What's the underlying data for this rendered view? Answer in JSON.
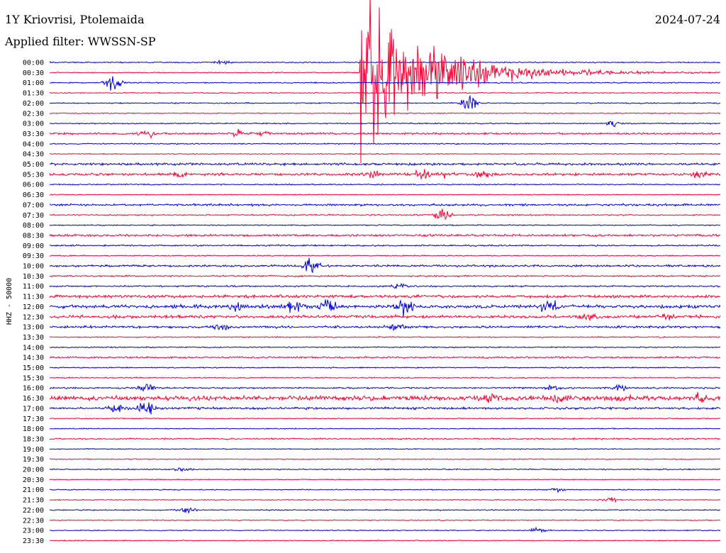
{
  "header": {
    "station": "1Y Kriovrisi, Ptolemaida",
    "filter": "Applied filter: WWSSN-SP",
    "date": "2024-07-24"
  },
  "colors": {
    "even_trace": "#0000dd",
    "odd_trace": "#ff0033"
  },
  "chart_data": {
    "type": "line",
    "title": "",
    "ylabel": "HHZ - 50000",
    "row_labels": [
      "00:00",
      "00:30",
      "01:00",
      "01:30",
      "02:00",
      "02:30",
      "03:00",
      "03:30",
      "04:00",
      "04:30",
      "05:00",
      "05:30",
      "06:00",
      "06:30",
      "07:00",
      "07:30",
      "08:00",
      "08:30",
      "09:00",
      "09:30",
      "10:00",
      "10:30",
      "11:00",
      "11:30",
      "12:00",
      "12:30",
      "13:00",
      "13:30",
      "14:00",
      "14:30",
      "15:00",
      "15:30",
      "16:00",
      "16:30",
      "17:00",
      "17:30",
      "18:00",
      "18:30",
      "19:00",
      "19:30",
      "20:00",
      "20:30",
      "21:00",
      "21:30",
      "22:00",
      "22:30",
      "23:00",
      "23:30"
    ],
    "row_noise": [
      0.6,
      0.5,
      0.6,
      0.5,
      0.6,
      0.5,
      0.6,
      1.0,
      0.6,
      0.5,
      1.2,
      1.3,
      0.6,
      0.5,
      1.1,
      0.7,
      0.6,
      1.1,
      0.8,
      0.6,
      1.1,
      0.8,
      0.8,
      1.5,
      1.8,
      1.6,
      1.2,
      0.6,
      0.6,
      0.9,
      0.6,
      0.6,
      0.8,
      2.4,
      1.2,
      0.5,
      0.5,
      0.8,
      0.5,
      0.5,
      0.6,
      0.5,
      0.5,
      0.5,
      0.6,
      0.5,
      0.5,
      0.5
    ],
    "events": [
      {
        "row": 0,
        "t": 0.257,
        "amp": 2
      },
      {
        "row": 1,
        "t": 0.462,
        "amp": 95,
        "decay": 0.09
      },
      {
        "row": 2,
        "t": 0.095,
        "amp": 9
      },
      {
        "row": 4,
        "t": 0.625,
        "amp": 10
      },
      {
        "row": 6,
        "t": 0.84,
        "amp": 3
      },
      {
        "row": 7,
        "t": 0.145,
        "amp": 4
      },
      {
        "row": 7,
        "t": 0.28,
        "amp": 4
      },
      {
        "row": 7,
        "t": 0.315,
        "amp": 3
      },
      {
        "row": 11,
        "t": 0.195,
        "amp": 3
      },
      {
        "row": 11,
        "t": 0.48,
        "amp": 4
      },
      {
        "row": 11,
        "t": 0.555,
        "amp": 5
      },
      {
        "row": 11,
        "t": 0.59,
        "amp": 3
      },
      {
        "row": 11,
        "t": 0.645,
        "amp": 4
      },
      {
        "row": 11,
        "t": 0.97,
        "amp": 4
      },
      {
        "row": 15,
        "t": 0.585,
        "amp": 8
      },
      {
        "row": 20,
        "t": 0.39,
        "amp": 8
      },
      {
        "row": 22,
        "t": 0.52,
        "amp": 4
      },
      {
        "row": 24,
        "t": 0.28,
        "amp": 6
      },
      {
        "row": 24,
        "t": 0.365,
        "amp": 7
      },
      {
        "row": 24,
        "t": 0.415,
        "amp": 6
      },
      {
        "row": 24,
        "t": 0.53,
        "amp": 9
      },
      {
        "row": 24,
        "t": 0.745,
        "amp": 9
      },
      {
        "row": 25,
        "t": 0.8,
        "amp": 4
      },
      {
        "row": 25,
        "t": 0.92,
        "amp": 4
      },
      {
        "row": 26,
        "t": 0.255,
        "amp": 4
      },
      {
        "row": 26,
        "t": 0.515,
        "amp": 3
      },
      {
        "row": 32,
        "t": 0.145,
        "amp": 5
      },
      {
        "row": 32,
        "t": 0.75,
        "amp": 3
      },
      {
        "row": 32,
        "t": 0.85,
        "amp": 3
      },
      {
        "row": 33,
        "t": 0.655,
        "amp": 5
      },
      {
        "row": 33,
        "t": 0.76,
        "amp": 4
      },
      {
        "row": 33,
        "t": 0.85,
        "amp": 5
      },
      {
        "row": 33,
        "t": 0.97,
        "amp": 4
      },
      {
        "row": 34,
        "t": 0.1,
        "amp": 5
      },
      {
        "row": 34,
        "t": 0.145,
        "amp": 9
      },
      {
        "row": 40,
        "t": 0.2,
        "amp": 2
      },
      {
        "row": 42,
        "t": 0.76,
        "amp": 2
      },
      {
        "row": 43,
        "t": 0.835,
        "amp": 3
      },
      {
        "row": 44,
        "t": 0.205,
        "amp": 3
      },
      {
        "row": 46,
        "t": 0.73,
        "amp": 3
      }
    ]
  }
}
